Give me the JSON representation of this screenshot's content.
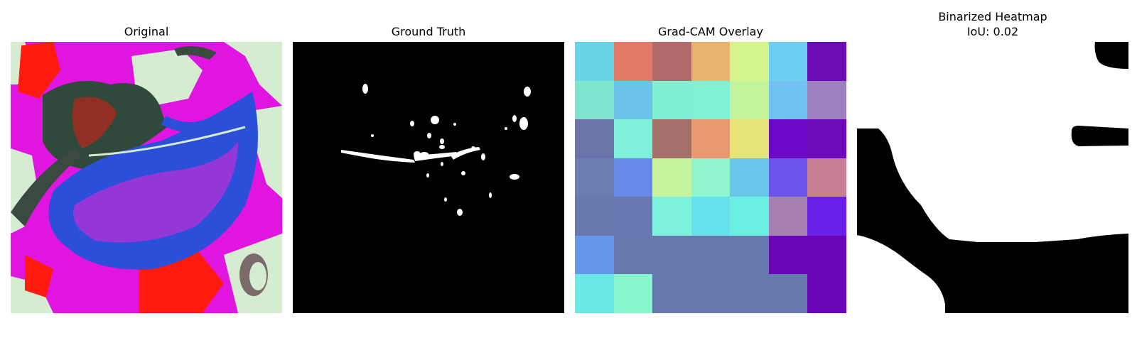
{
  "panels": [
    {
      "title": "Original"
    },
    {
      "title": "Ground Truth"
    },
    {
      "title": "Grad-CAM Overlay"
    },
    {
      "title": "Binarized Heatmap",
      "subtitle": "IoU: 0.02"
    }
  ],
  "gradcam_colors": [
    [
      "#67d4e8",
      "#e57a6b",
      "#b46a6a",
      "#e8b26f",
      "#d4f58c",
      "#6ecff2",
      "#6a0db4"
    ],
    [
      "#7ee6cf",
      "#6ac3e8",
      "#7ff0d2",
      "#7ff2d6",
      "#c2f59b",
      "#71c1f3",
      "#9c80c0"
    ],
    [
      "#6b73a8",
      "#7ff0d9",
      "#a6706a",
      "#e79a72",
      "#e6e57a",
      "#6b0ac6",
      "#6c0cb9"
    ],
    [
      "#6b7db1",
      "#6889ea",
      "#c6f39b",
      "#8ef5cf",
      "#6ac5ea",
      "#6b55ec",
      "#c77f93"
    ],
    [
      "#6779af",
      "#6779b0",
      "#7df3de",
      "#66e0ea",
      "#6af0e2",
      "#a680b2",
      "#6a1fe9"
    ],
    [
      "#6698ea",
      "#6679af",
      "#6679af",
      "#6679af",
      "#6679af",
      "#6a06b5",
      "#6a06b5"
    ],
    [
      "#69e8e6",
      "#87f6cb",
      "#6679af",
      "#6679af",
      "#6679af",
      "#6679af",
      "#6a06b5"
    ]
  ]
}
